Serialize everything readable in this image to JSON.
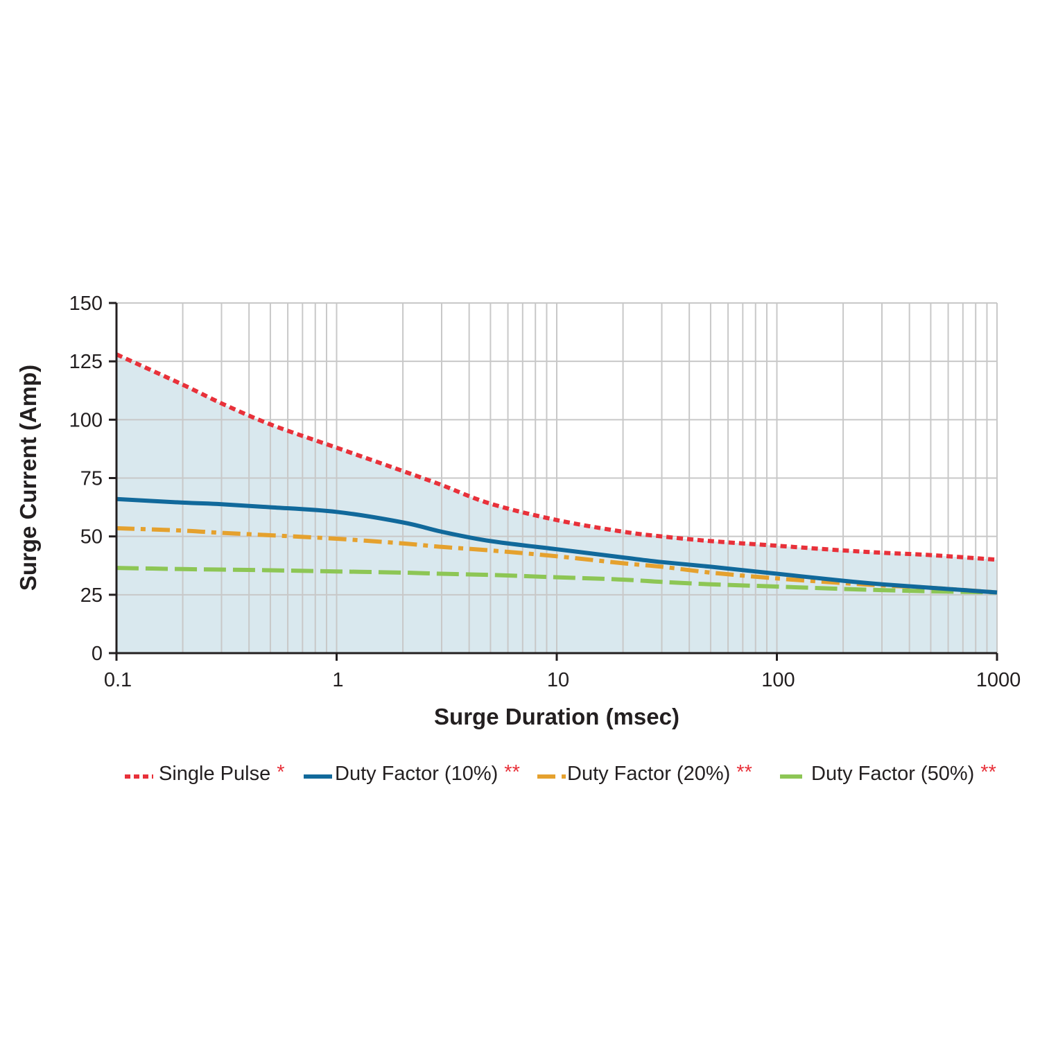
{
  "chart_data": {
    "type": "line",
    "title": "",
    "xlabel": "Surge Duration (msec)",
    "ylabel": "Surge Current (Amp)",
    "x_scale": "log",
    "xlim": [
      0.1,
      1000
    ],
    "ylim": [
      0,
      150
    ],
    "x_ticks": [
      0.1,
      1,
      10,
      100,
      1000
    ],
    "x_tick_labels": [
      "0.1",
      "1",
      "10",
      "100",
      "1000"
    ],
    "y_ticks": [
      0,
      25,
      50,
      75,
      100,
      125,
      150
    ],
    "y_tick_labels": [
      "0",
      "25",
      "50",
      "75",
      "100",
      "125",
      "150"
    ],
    "grid": true,
    "legend_position": "bottom",
    "plot_background": "#d9e8ee",
    "shaded_region_under": "Single Pulse",
    "series": [
      {
        "name": "Single Pulse",
        "marker_text": "*",
        "color": "#e8313a",
        "style": "dotted",
        "x": [
          0.1,
          0.2,
          0.3,
          0.5,
          1,
          2,
          3,
          5,
          10,
          20,
          30,
          50,
          100,
          200,
          300,
          500,
          1000
        ],
        "y": [
          128,
          115,
          107,
          98,
          88,
          78,
          72,
          64,
          57,
          52,
          50,
          48,
          46,
          44,
          43,
          42,
          40
        ]
      },
      {
        "name": "Duty Factor (10%)",
        "marker_text": "**",
        "color": "#11699b",
        "style": "solid",
        "x": [
          0.1,
          0.2,
          0.3,
          0.5,
          1,
          2,
          3,
          5,
          10,
          20,
          30,
          50,
          100,
          200,
          300,
          500,
          1000
        ],
        "y": [
          66,
          64.5,
          63.8,
          62.5,
          60.5,
          56,
          52,
          48,
          44.5,
          41,
          39,
          37,
          34,
          31,
          29.5,
          28,
          26
        ]
      },
      {
        "name": "Duty Factor (20%)",
        "marker_text": "**",
        "color": "#e5a12e",
        "style": "dash-dot",
        "x": [
          0.1,
          0.2,
          0.3,
          0.5,
          1,
          2,
          3,
          5,
          10,
          20,
          30,
          50,
          100,
          200,
          300,
          500,
          1000
        ],
        "y": [
          53.5,
          52.5,
          51.5,
          50.5,
          49,
          47,
          45.5,
          44,
          41.5,
          38.5,
          37,
          34.5,
          32,
          30,
          29,
          28,
          26
        ]
      },
      {
        "name": "Duty Factor (50%)",
        "marker_text": "**",
        "color": "#8dc655",
        "style": "dashed",
        "x": [
          0.1,
          0.2,
          0.3,
          0.5,
          1,
          2,
          3,
          5,
          10,
          20,
          30,
          50,
          100,
          200,
          300,
          500,
          1000
        ],
        "y": [
          36.5,
          36,
          35.8,
          35.5,
          35,
          34.5,
          34,
          33.5,
          32.5,
          31.5,
          30.5,
          29.5,
          28.5,
          27.5,
          27,
          26.5,
          26
        ]
      }
    ]
  }
}
